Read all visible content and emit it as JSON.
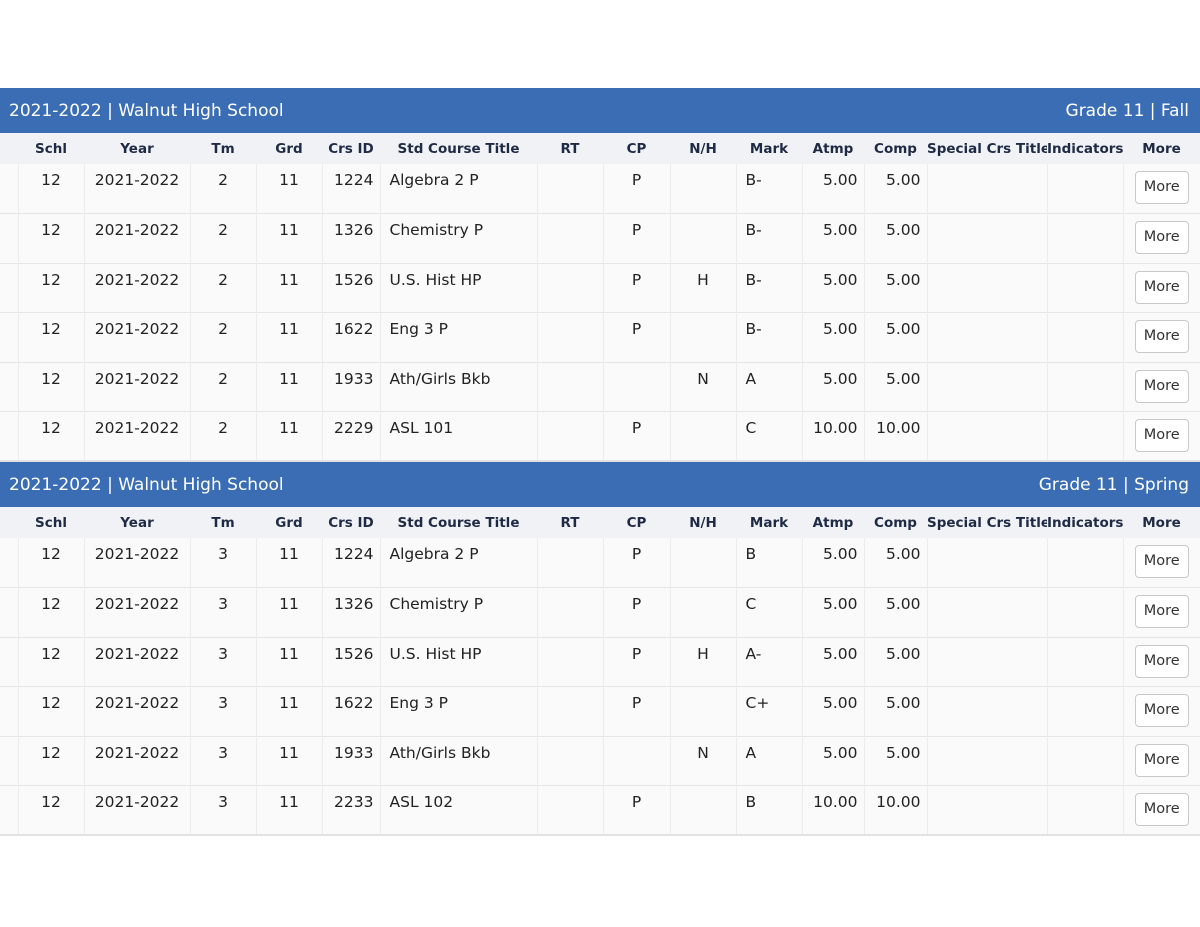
{
  "columns": [
    "",
    "Schl",
    "Year",
    "Tm",
    "Grd",
    "Crs ID",
    "Std Course Title",
    "RT",
    "CP",
    "N/H",
    "Mark",
    "Atmp",
    "Comp",
    "Special Crs Title",
    "Indicators",
    "More"
  ],
  "more_label": "More",
  "sections": [
    {
      "title": "2021-2022 | Walnut High School",
      "term_label": "Grade 11 | Fall",
      "rows": [
        {
          "schl": "12",
          "year": "2021-2022",
          "tm": "2",
          "grd": "11",
          "crs_id": "1224",
          "title": "Algebra 2 P",
          "rt": "",
          "cp": "P",
          "nh": "",
          "mark": "B-",
          "atmp": "5.00",
          "comp": "5.00",
          "special": "",
          "indicators": ""
        },
        {
          "schl": "12",
          "year": "2021-2022",
          "tm": "2",
          "grd": "11",
          "crs_id": "1326",
          "title": "Chemistry P",
          "rt": "",
          "cp": "P",
          "nh": "",
          "mark": "B-",
          "atmp": "5.00",
          "comp": "5.00",
          "special": "",
          "indicators": ""
        },
        {
          "schl": "12",
          "year": "2021-2022",
          "tm": "2",
          "grd": "11",
          "crs_id": "1526",
          "title": "U.S. Hist HP",
          "rt": "",
          "cp": "P",
          "nh": "H",
          "mark": "B-",
          "atmp": "5.00",
          "comp": "5.00",
          "special": "",
          "indicators": ""
        },
        {
          "schl": "12",
          "year": "2021-2022",
          "tm": "2",
          "grd": "11",
          "crs_id": "1622",
          "title": "Eng 3 P",
          "rt": "",
          "cp": "P",
          "nh": "",
          "mark": "B-",
          "atmp": "5.00",
          "comp": "5.00",
          "special": "",
          "indicators": ""
        },
        {
          "schl": "12",
          "year": "2021-2022",
          "tm": "2",
          "grd": "11",
          "crs_id": "1933",
          "title": "Ath/Girls Bkb",
          "rt": "",
          "cp": "",
          "nh": "N",
          "mark": "A",
          "atmp": "5.00",
          "comp": "5.00",
          "special": "",
          "indicators": ""
        },
        {
          "schl": "12",
          "year": "2021-2022",
          "tm": "2",
          "grd": "11",
          "crs_id": "2229",
          "title": "ASL 101",
          "rt": "",
          "cp": "P",
          "nh": "",
          "mark": "C",
          "atmp": "10.00",
          "comp": "10.00",
          "special": "",
          "indicators": ""
        }
      ]
    },
    {
      "title": "2021-2022 | Walnut High School",
      "term_label": "Grade 11 | Spring",
      "rows": [
        {
          "schl": "12",
          "year": "2021-2022",
          "tm": "3",
          "grd": "11",
          "crs_id": "1224",
          "title": "Algebra 2 P",
          "rt": "",
          "cp": "P",
          "nh": "",
          "mark": "B",
          "atmp": "5.00",
          "comp": "5.00",
          "special": "",
          "indicators": ""
        },
        {
          "schl": "12",
          "year": "2021-2022",
          "tm": "3",
          "grd": "11",
          "crs_id": "1326",
          "title": "Chemistry P",
          "rt": "",
          "cp": "P",
          "nh": "",
          "mark": "C",
          "atmp": "5.00",
          "comp": "5.00",
          "special": "",
          "indicators": ""
        },
        {
          "schl": "12",
          "year": "2021-2022",
          "tm": "3",
          "grd": "11",
          "crs_id": "1526",
          "title": "U.S. Hist HP",
          "rt": "",
          "cp": "P",
          "nh": "H",
          "mark": "A-",
          "atmp": "5.00",
          "comp": "5.00",
          "special": "",
          "indicators": ""
        },
        {
          "schl": "12",
          "year": "2021-2022",
          "tm": "3",
          "grd": "11",
          "crs_id": "1622",
          "title": "Eng 3 P",
          "rt": "",
          "cp": "P",
          "nh": "",
          "mark": "C+",
          "atmp": "5.00",
          "comp": "5.00",
          "special": "",
          "indicators": ""
        },
        {
          "schl": "12",
          "year": "2021-2022",
          "tm": "3",
          "grd": "11",
          "crs_id": "1933",
          "title": "Ath/Girls Bkb",
          "rt": "",
          "cp": "",
          "nh": "N",
          "mark": "A",
          "atmp": "5.00",
          "comp": "5.00",
          "special": "",
          "indicators": ""
        },
        {
          "schl": "12",
          "year": "2021-2022",
          "tm": "3",
          "grd": "11",
          "crs_id": "2233",
          "title": "ASL 102",
          "rt": "",
          "cp": "P",
          "nh": "",
          "mark": "B",
          "atmp": "10.00",
          "comp": "10.00",
          "special": "",
          "indicators": ""
        }
      ]
    }
  ]
}
